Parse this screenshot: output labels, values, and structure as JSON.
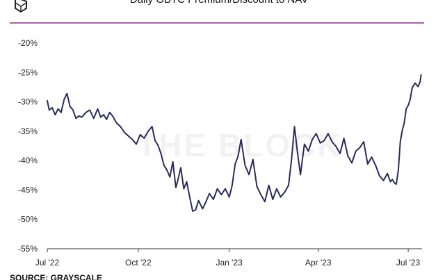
{
  "chart_data": {
    "type": "line",
    "title": "Daily GBTC Premium/Discount to NAV",
    "xlabel": "",
    "ylabel": "",
    "ylim": [
      -55,
      -20
    ],
    "yticks": [
      -20,
      -25,
      -30,
      -35,
      -40,
      -45,
      -50,
      -55
    ],
    "ytick_labels": [
      "-20%",
      "-25%",
      "-30%",
      "-35%",
      "-40%",
      "-45%",
      "-50%",
      "-55%"
    ],
    "xlim": [
      "2022-07-01",
      "2023-07-15"
    ],
    "xticks": [
      "2022-07-01",
      "2022-10-01",
      "2023-01-01",
      "2023-04-01",
      "2023-07-01"
    ],
    "xtick_labels": [
      "Jul '22",
      "Oct '22",
      "Jan '23",
      "Apr '23",
      "Jul '23"
    ],
    "grid": false,
    "series": [
      {
        "color": "#2b2a5c",
        "x": [
          "2022-07-01",
          "2022-07-03",
          "2022-07-06",
          "2022-07-09",
          "2022-07-12",
          "2022-07-15",
          "2022-07-18",
          "2022-07-21",
          "2022-07-24",
          "2022-07-27",
          "2022-07-30",
          "2022-08-02",
          "2022-08-05",
          "2022-08-09",
          "2022-08-13",
          "2022-08-17",
          "2022-08-21",
          "2022-08-24",
          "2022-08-27",
          "2022-08-30",
          "2022-09-02",
          "2022-09-05",
          "2022-09-09",
          "2022-09-13",
          "2022-09-17",
          "2022-09-21",
          "2022-09-25",
          "2022-09-29",
          "2022-10-03",
          "2022-10-07",
          "2022-10-11",
          "2022-10-15",
          "2022-10-18",
          "2022-10-21",
          "2022-10-24",
          "2022-10-27",
          "2022-10-30",
          "2022-11-02",
          "2022-11-05",
          "2022-11-08",
          "2022-11-10",
          "2022-11-13",
          "2022-11-16",
          "2022-11-19",
          "2022-11-22",
          "2022-11-25",
          "2022-11-28",
          "2022-12-01",
          "2022-12-05",
          "2022-12-08",
          "2022-12-12",
          "2022-12-16",
          "2022-12-20",
          "2022-12-24",
          "2022-12-28",
          "2023-01-01",
          "2023-01-04",
          "2023-01-07",
          "2023-01-10",
          "2023-01-13",
          "2023-01-17",
          "2023-01-21",
          "2023-01-25",
          "2023-01-29",
          "2023-02-02",
          "2023-02-06",
          "2023-02-10",
          "2023-02-14",
          "2023-02-18",
          "2023-02-22",
          "2023-02-26",
          "2023-03-02",
          "2023-03-05",
          "2023-03-08",
          "2023-03-11",
          "2023-03-14",
          "2023-03-18",
          "2023-03-22",
          "2023-03-26",
          "2023-03-30",
          "2023-04-03",
          "2023-04-07",
          "2023-04-11",
          "2023-04-15",
          "2023-04-19",
          "2023-04-23",
          "2023-04-27",
          "2023-05-01",
          "2023-05-05",
          "2023-05-09",
          "2023-05-13",
          "2023-05-17",
          "2023-05-21",
          "2023-05-25",
          "2023-05-29",
          "2023-06-02",
          "2023-06-06",
          "2023-06-10",
          "2023-06-13",
          "2023-06-15",
          "2023-06-17",
          "2023-06-19",
          "2023-06-21",
          "2023-06-23",
          "2023-06-25",
          "2023-06-27",
          "2023-06-29",
          "2023-07-01",
          "2023-07-03",
          "2023-07-05",
          "2023-07-08",
          "2023-07-11",
          "2023-07-13",
          "2023-07-14"
        ],
        "y": [
          -29.8,
          -31.4,
          -31.0,
          -32.2,
          -31.2,
          -31.8,
          -29.6,
          -28.6,
          -30.8,
          -31.4,
          -32.8,
          -32.4,
          -32.6,
          -31.8,
          -31.4,
          -32.8,
          -31.2,
          -32.6,
          -32.2,
          -33.0,
          -31.8,
          -32.4,
          -33.6,
          -34.2,
          -35.2,
          -35.8,
          -36.4,
          -37.2,
          -35.6,
          -36.2,
          -35.0,
          -34.2,
          -36.6,
          -37.4,
          -38.8,
          -40.8,
          -41.6,
          -42.8,
          -40.2,
          -44.6,
          -43.4,
          -41.2,
          -44.8,
          -43.6,
          -46.2,
          -48.6,
          -48.4,
          -46.8,
          -48.2,
          -47.2,
          -45.6,
          -46.6,
          -44.8,
          -45.8,
          -44.8,
          -46.2,
          -44.2,
          -40.6,
          -39.2,
          -36.4,
          -40.8,
          -42.4,
          -39.8,
          -44.4,
          -45.8,
          -47.0,
          -44.2,
          -46.6,
          -44.8,
          -46.2,
          -45.4,
          -44.2,
          -39.8,
          -34.2,
          -38.6,
          -42.4,
          -37.2,
          -38.4,
          -36.4,
          -35.4,
          -37.0,
          -36.6,
          -35.4,
          -36.8,
          -37.6,
          -38.8,
          -36.2,
          -39.2,
          -40.4,
          -38.4,
          -37.8,
          -36.8,
          -40.6,
          -39.4,
          -40.8,
          -42.6,
          -43.4,
          -42.2,
          -43.6,
          -43.2,
          -43.8,
          -44.0,
          -41.6,
          -36.8,
          -34.8,
          -33.6,
          -31.2,
          -30.6,
          -29.6,
          -27.6,
          -26.8,
          -27.4,
          -26.6,
          -25.4
        ]
      }
    ]
  },
  "watermark": "THE BLOCK",
  "source": "SOURCE: GRAYSCALE",
  "colors": {
    "line": "#2b2a5c",
    "header_rule": "#8e2a8c",
    "axis": "#333333",
    "background": "#ffffff"
  }
}
